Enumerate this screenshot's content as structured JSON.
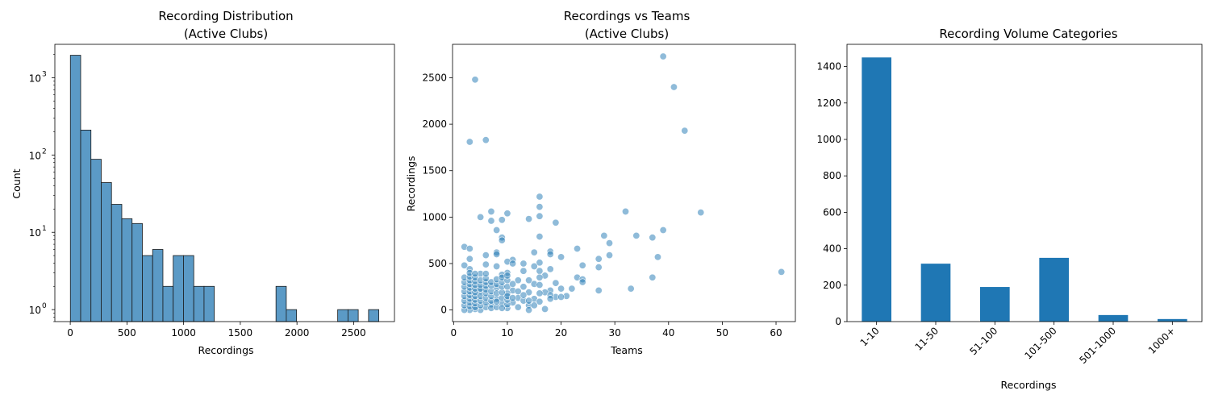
{
  "chart_data": [
    {
      "type": "bar",
      "subtype": "histogram",
      "title": [
        "Recording Distribution",
        "(Active Clubs)"
      ],
      "xlabel": "Recordings",
      "ylabel": "Count",
      "yscale": "log",
      "ylim": [
        0.7,
        2700
      ],
      "xlim": [
        -136,
        2860
      ],
      "xticks": [
        0,
        500,
        1000,
        1500,
        2000,
        2500
      ],
      "yticks": [
        {
          "value": 1,
          "base": "10",
          "exp": "0"
        },
        {
          "value": 10,
          "base": "10",
          "exp": "1"
        },
        {
          "value": 100,
          "base": "10",
          "exp": "2"
        },
        {
          "value": 1000,
          "base": "10",
          "exp": "3"
        }
      ],
      "bin_width": 90.7,
      "bin_start": 1,
      "counts": [
        1950,
        210,
        88,
        44,
        23,
        15,
        13,
        5,
        6,
        2,
        5,
        5,
        2,
        2,
        0,
        0,
        0,
        0,
        0,
        0,
        2,
        1,
        0,
        0,
        0,
        0,
        1,
        1,
        0,
        1
      ],
      "color": "#5b9ac6",
      "edge_color": "#1a1a1a"
    },
    {
      "type": "scatter",
      "title": [
        "Recordings vs Teams",
        "(Active Clubs)"
      ],
      "xlabel": "Teams",
      "ylabel": "Recordings",
      "xlim": [
        -0.2,
        63.6
      ],
      "ylim": [
        -125,
        2860
      ],
      "xticks": [
        0,
        10,
        20,
        30,
        40,
        50,
        60
      ],
      "yticks": [
        0,
        500,
        1000,
        1500,
        2000,
        2500
      ],
      "color": "#1f77b4",
      "alpha": 0.5,
      "points": [
        [
          39,
          2730
        ],
        [
          4,
          2480
        ],
        [
          41,
          2400
        ],
        [
          43,
          1930
        ],
        [
          6,
          1830
        ],
        [
          3,
          1810
        ],
        [
          16,
          1220
        ],
        [
          16,
          1110
        ],
        [
          7,
          1060
        ],
        [
          10,
          1040
        ],
        [
          32,
          1060
        ],
        [
          46,
          1050
        ],
        [
          16,
          1010
        ],
        [
          5,
          1000
        ],
        [
          14,
          980
        ],
        [
          9,
          970
        ],
        [
          7,
          960
        ],
        [
          19,
          940
        ],
        [
          8,
          860
        ],
        [
          39,
          860
        ],
        [
          28,
          800
        ],
        [
          34,
          800
        ],
        [
          37,
          780
        ],
        [
          16,
          790
        ],
        [
          9,
          780
        ],
        [
          9,
          750
        ],
        [
          29,
          720
        ],
        [
          2,
          680
        ],
        [
          3,
          660
        ],
        [
          23,
          660
        ],
        [
          18,
          630
        ],
        [
          8,
          620
        ],
        [
          8,
          600
        ],
        [
          18,
          600
        ],
        [
          15,
          620
        ],
        [
          29,
          590
        ],
        [
          6,
          590
        ],
        [
          38,
          570
        ],
        [
          20,
          570
        ],
        [
          27,
          550
        ],
        [
          3,
          550
        ],
        [
          11,
          540
        ],
        [
          10,
          520
        ],
        [
          16,
          510
        ],
        [
          13,
          500
        ],
        [
          11,
          500
        ],
        [
          6,
          490
        ],
        [
          2,
          480
        ],
        [
          15,
          470
        ],
        [
          8,
          470
        ],
        [
          24,
          480
        ],
        [
          27,
          460
        ],
        [
          3,
          440
        ],
        [
          18,
          440
        ],
        [
          16,
          420
        ],
        [
          61,
          410
        ],
        [
          10,
          400
        ],
        [
          5,
          390
        ],
        [
          9,
          380
        ],
        [
          17,
          370
        ],
        [
          37,
          350
        ],
        [
          23,
          350
        ],
        [
          16,
          350
        ],
        [
          24,
          330
        ],
        [
          12,
          320
        ],
        [
          14,
          320
        ],
        [
          24,
          300
        ],
        [
          19,
          290
        ],
        [
          15,
          280
        ],
        [
          16,
          270
        ],
        [
          13,
          250
        ],
        [
          8,
          240
        ],
        [
          22,
          230
        ],
        [
          33,
          230
        ],
        [
          20,
          230
        ],
        [
          27,
          210
        ],
        [
          18,
          210
        ],
        [
          11,
          210
        ],
        [
          5,
          200
        ],
        [
          17,
          190
        ],
        [
          14,
          190
        ],
        [
          10,
          180
        ],
        [
          21,
          150
        ],
        [
          19,
          140
        ],
        [
          20,
          140
        ],
        [
          12,
          130
        ],
        [
          15,
          120
        ],
        [
          8,
          120
        ],
        [
          13,
          100
        ],
        [
          16,
          90
        ],
        [
          11,
          80
        ],
        [
          9,
          70
        ],
        [
          7,
          60
        ],
        [
          14,
          50
        ],
        [
          12,
          30
        ],
        [
          10,
          20
        ],
        [
          17,
          10
        ],
        [
          14,
          0
        ],
        [
          5,
          0
        ],
        [
          6,
          30
        ],
        [
          4,
          10
        ],
        [
          3,
          0
        ],
        [
          2,
          0
        ],
        [
          2,
          50
        ],
        [
          2,
          100
        ],
        [
          2,
          150
        ],
        [
          2,
          200
        ],
        [
          2,
          250
        ],
        [
          2,
          300
        ],
        [
          2,
          350
        ],
        [
          3,
          40
        ],
        [
          3,
          80
        ],
        [
          3,
          120
        ],
        [
          3,
          160
        ],
        [
          3,
          200
        ],
        [
          3,
          240
        ],
        [
          3,
          280
        ],
        [
          3,
          320
        ],
        [
          3,
          360
        ],
        [
          3,
          400
        ],
        [
          4,
          30
        ],
        [
          4,
          70
        ],
        [
          4,
          110
        ],
        [
          4,
          150
        ],
        [
          4,
          190
        ],
        [
          4,
          230
        ],
        [
          4,
          270
        ],
        [
          4,
          310
        ],
        [
          4,
          350
        ],
        [
          4,
          390
        ],
        [
          5,
          50
        ],
        [
          5,
          100
        ],
        [
          5,
          150
        ],
        [
          5,
          230
        ],
        [
          5,
          270
        ],
        [
          5,
          320
        ],
        [
          6,
          80
        ],
        [
          6,
          130
        ],
        [
          6,
          180
        ],
        [
          6,
          220
        ],
        [
          6,
          260
        ],
        [
          6,
          300
        ],
        [
          6,
          340
        ],
        [
          6,
          390
        ],
        [
          7,
          20
        ],
        [
          7,
          100
        ],
        [
          7,
          150
        ],
        [
          7,
          200
        ],
        [
          7,
          260
        ],
        [
          7,
          300
        ],
        [
          8,
          30
        ],
        [
          8,
          90
        ],
        [
          8,
          180
        ],
        [
          8,
          280
        ],
        [
          8,
          330
        ],
        [
          9,
          20
        ],
        [
          9,
          130
        ],
        [
          9,
          190
        ],
        [
          9,
          250
        ],
        [
          9,
          300
        ],
        [
          9,
          350
        ],
        [
          10,
          60
        ],
        [
          10,
          110
        ],
        [
          10,
          150
        ],
        [
          10,
          250
        ],
        [
          10,
          320
        ],
        [
          10,
          370
        ],
        [
          11,
          130
        ],
        [
          11,
          280
        ],
        [
          12,
          200
        ],
        [
          13,
          160
        ],
        [
          13,
          420
        ],
        [
          14,
          100
        ],
        [
          15,
          50
        ],
        [
          16,
          180
        ],
        [
          18,
          160
        ],
        [
          18,
          120
        ]
      ]
    },
    {
      "type": "bar",
      "title": "Recording Volume Categories",
      "xlabel": "Recordings",
      "ylabel": "",
      "ylim": [
        0,
        1522
      ],
      "yticks": [
        0,
        200,
        400,
        600,
        800,
        1000,
        1200,
        1400
      ],
      "categories": [
        "1-10",
        "11-50",
        "51-100",
        "101-500",
        "501-1000",
        "1000+"
      ],
      "values": [
        1450,
        318,
        190,
        350,
        36,
        14
      ],
      "color": "#1f77b4"
    }
  ]
}
